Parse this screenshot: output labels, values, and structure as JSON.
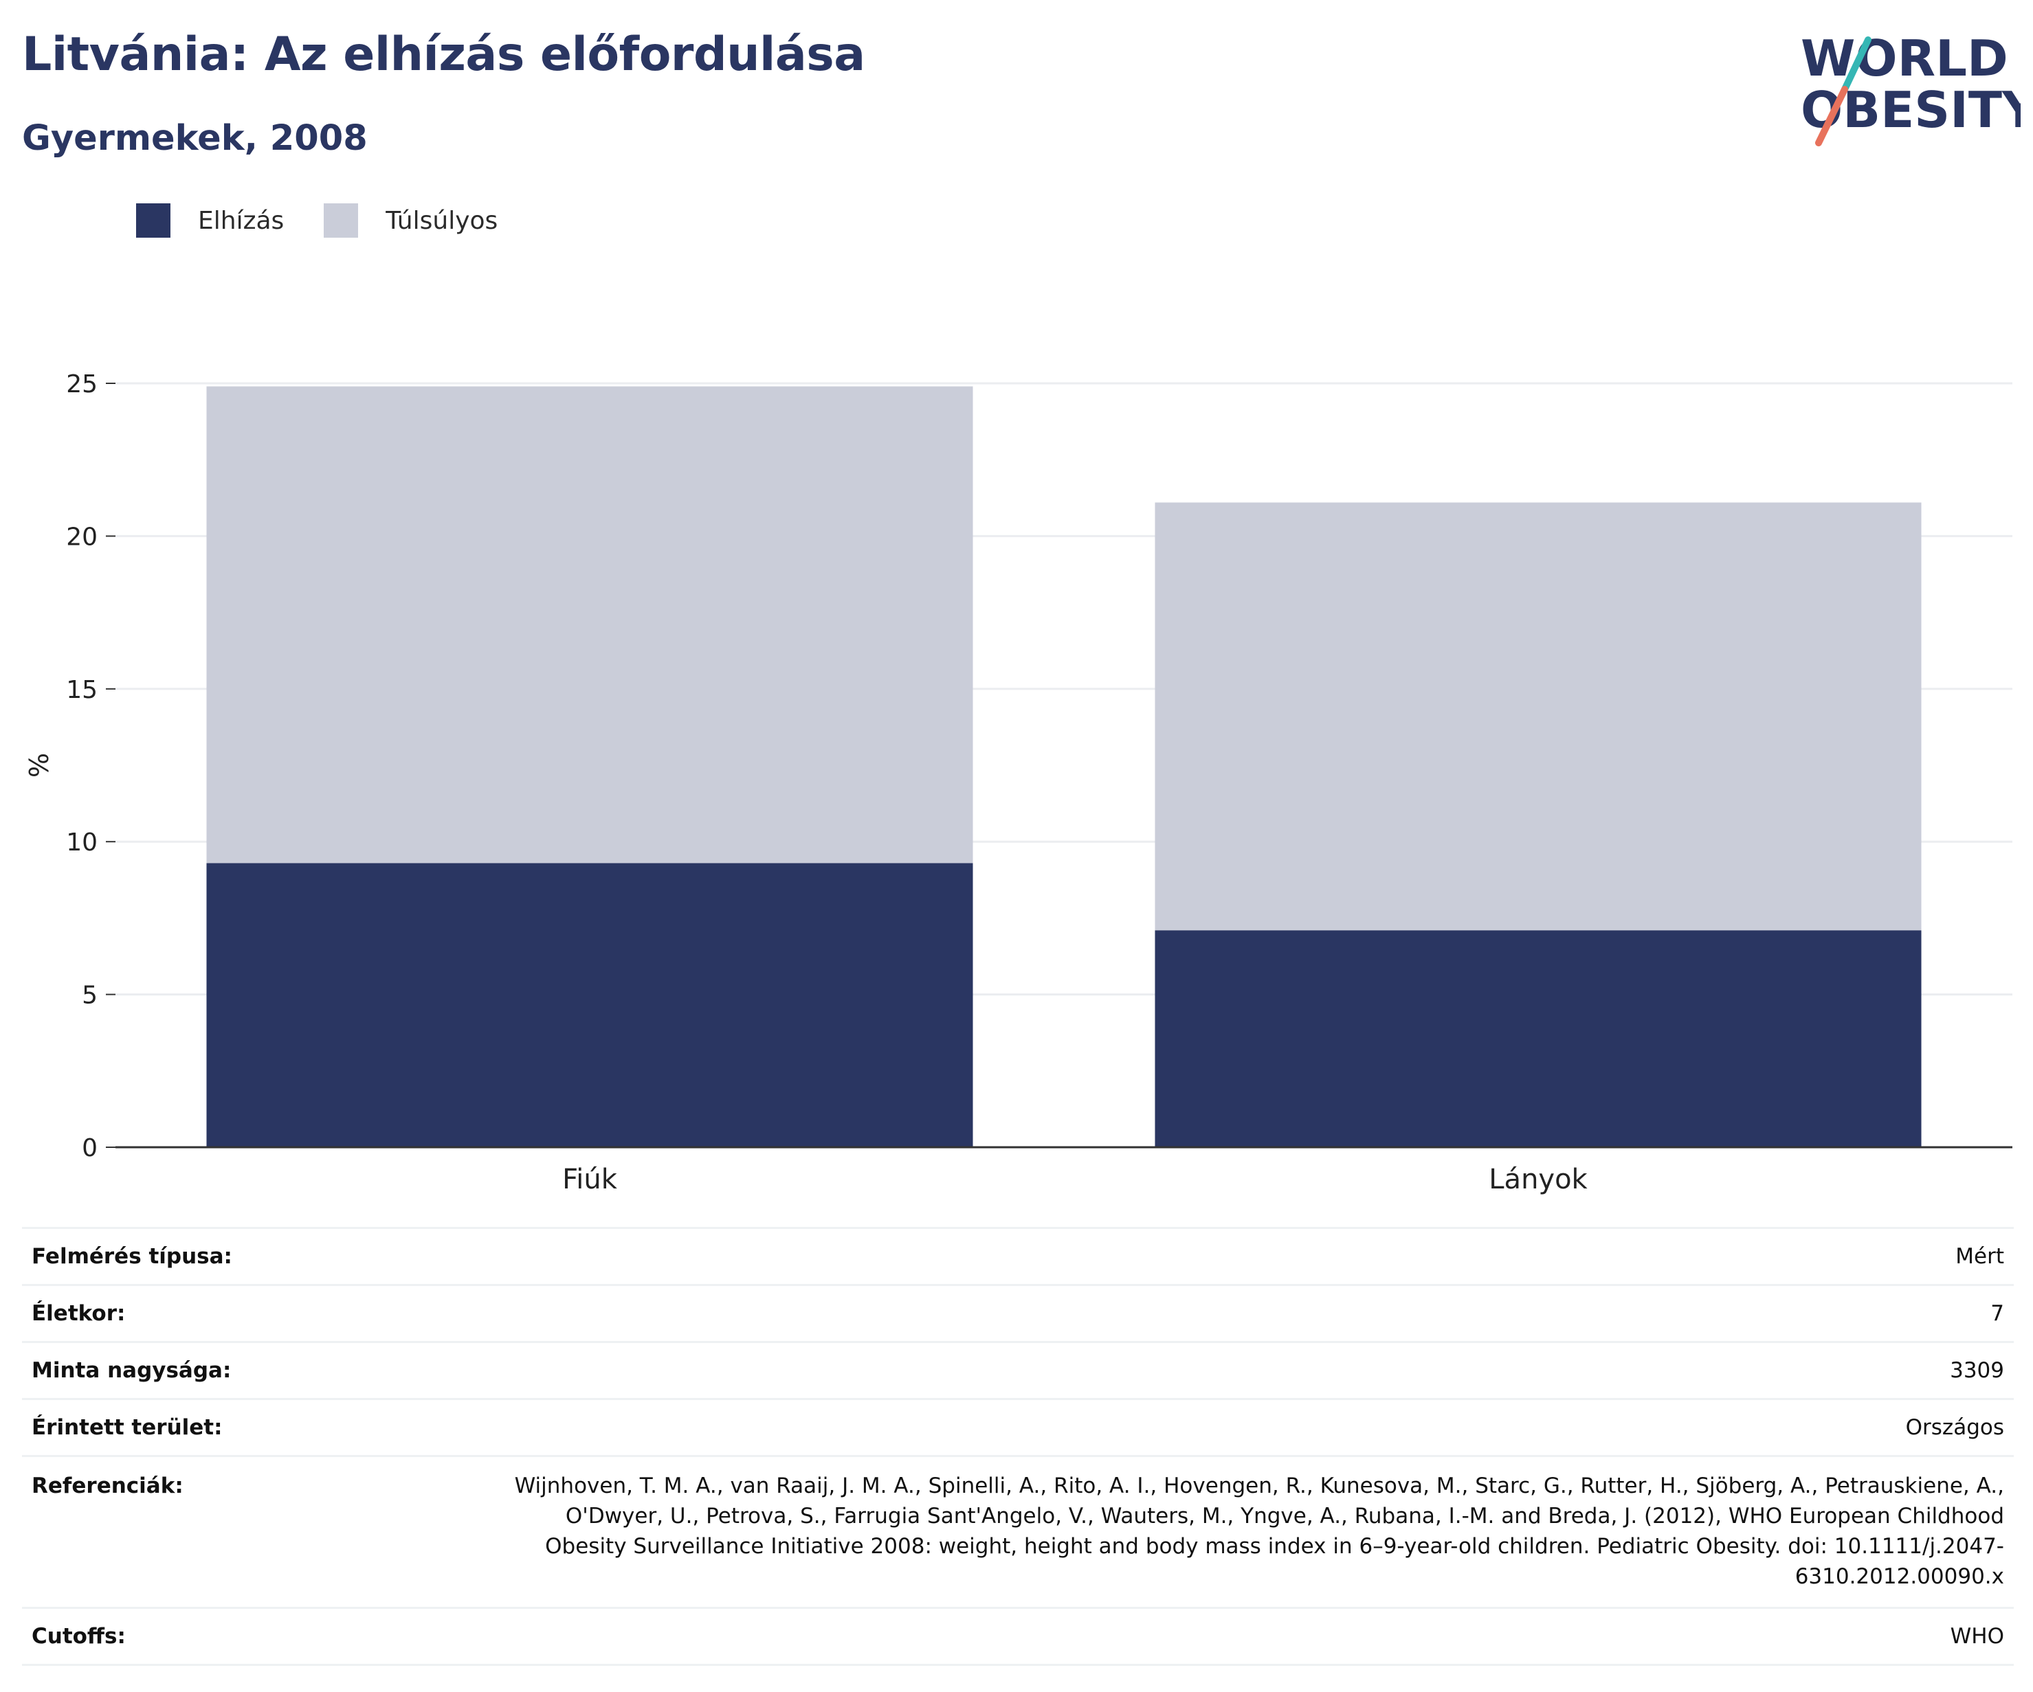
{
  "header": {
    "title": "Litvánia: Az elhízás előfordulása",
    "subtitle": "Gyermekek, 2008"
  },
  "logo": {
    "line1": "WORLD",
    "line2": "OBESITY",
    "accent_colors": [
      "#35b6b4",
      "#e8725c"
    ]
  },
  "legend": [
    {
      "label": "Elhízás",
      "color": "#2a3662"
    },
    {
      "label": "Túlsúlyos",
      "color": "#cacdd9"
    }
  ],
  "chart_data": {
    "type": "bar",
    "stacked": true,
    "categories": [
      "Fiúk",
      "Lányok"
    ],
    "series": [
      {
        "name": "Elhízás",
        "color": "#2a3662",
        "values": [
          9.3,
          7.1
        ]
      },
      {
        "name": "Túlsúlyos",
        "color": "#cacdd9",
        "values": [
          15.6,
          14.0
        ]
      }
    ],
    "ylabel": "%",
    "ylim": [
      0,
      25
    ],
    "yticks": [
      0,
      5,
      10,
      15,
      20,
      25
    ],
    "grid": true,
    "legend_position": "top-left"
  },
  "info": [
    {
      "label": "Felmérés típusa:",
      "value": "Mért"
    },
    {
      "label": "Életkor:",
      "value": "7"
    },
    {
      "label": "Minta nagysága:",
      "value": "3309"
    },
    {
      "label": "Érintett terület:",
      "value": "Országos"
    },
    {
      "label": "Referenciák:",
      "value": "Wijnhoven, T. M. A., van Raaij, J. M. A., Spinelli, A., Rito, A. I., Hovengen, R., Kunesova, M., Starc, G., Rutter, H., Sjöberg, A., Petrauskiene, A., O'Dwyer, U., Petrova, S., Farrugia Sant'Angelo, V., Wauters, M., Yngve, A., Rubana, I.-M. and Breda, J. (2012), WHO European Childhood Obesity Surveillance Initiative 2008: weight, height and body mass index in 6–9-year-old children. Pediatric Obesity. doi: 10.1111/j.2047-6310.2012.00090.x"
    },
    {
      "label": "Cutoffs:",
      "value": "WHO"
    }
  ]
}
